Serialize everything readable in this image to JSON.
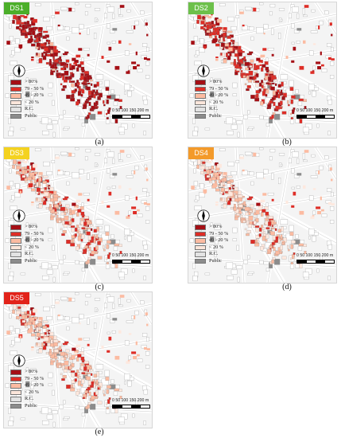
{
  "colors": {
    ">80": "#a50f15",
    "79-50": "#de2d26",
    "49-20": "#fcbba1",
    "<20": "#fee8de",
    "rc": "#e3e3e3",
    "public": "#8c8c8c"
  },
  "legend": [
    {
      "label": "> 80%",
      "color": "#a50f15"
    },
    {
      "label": "79 - 50 %",
      "color": "#de2d26"
    },
    {
      "label": "49 - 20 %",
      "color": "#fcbba1"
    },
    {
      "label": "< 20 %",
      "color": "#fbe5da"
    },
    {
      "label": "R.C.",
      "color": "#e3e3e3"
    },
    {
      "label": "Public",
      "color": "#8c8c8c"
    }
  ],
  "scale": {
    "ticks": "0   50  100 150 200 m"
  },
  "panels": [
    {
      "badge": "DS1",
      "badge_color": "#4caf2a",
      "caption": "(a)",
      "intensity": [
        0.72,
        0.25,
        0.03,
        0.0
      ]
    },
    {
      "badge": "DS2",
      "badge_color": "#6cc04a",
      "caption": "(b)",
      "intensity": [
        0.38,
        0.42,
        0.15,
        0.05
      ]
    },
    {
      "badge": "DS3",
      "badge_color": "#f4d21f",
      "caption": "(c)",
      "intensity": [
        0.04,
        0.3,
        0.46,
        0.2
      ]
    },
    {
      "badge": "DS4",
      "badge_color": "#f39a2a",
      "caption": "(d)",
      "intensity": [
        0.02,
        0.18,
        0.45,
        0.35
      ]
    },
    {
      "badge": "DS5",
      "badge_color": "#e2231a",
      "caption": "(e)",
      "intensity": [
        0.03,
        0.22,
        0.44,
        0.31
      ]
    }
  ]
}
